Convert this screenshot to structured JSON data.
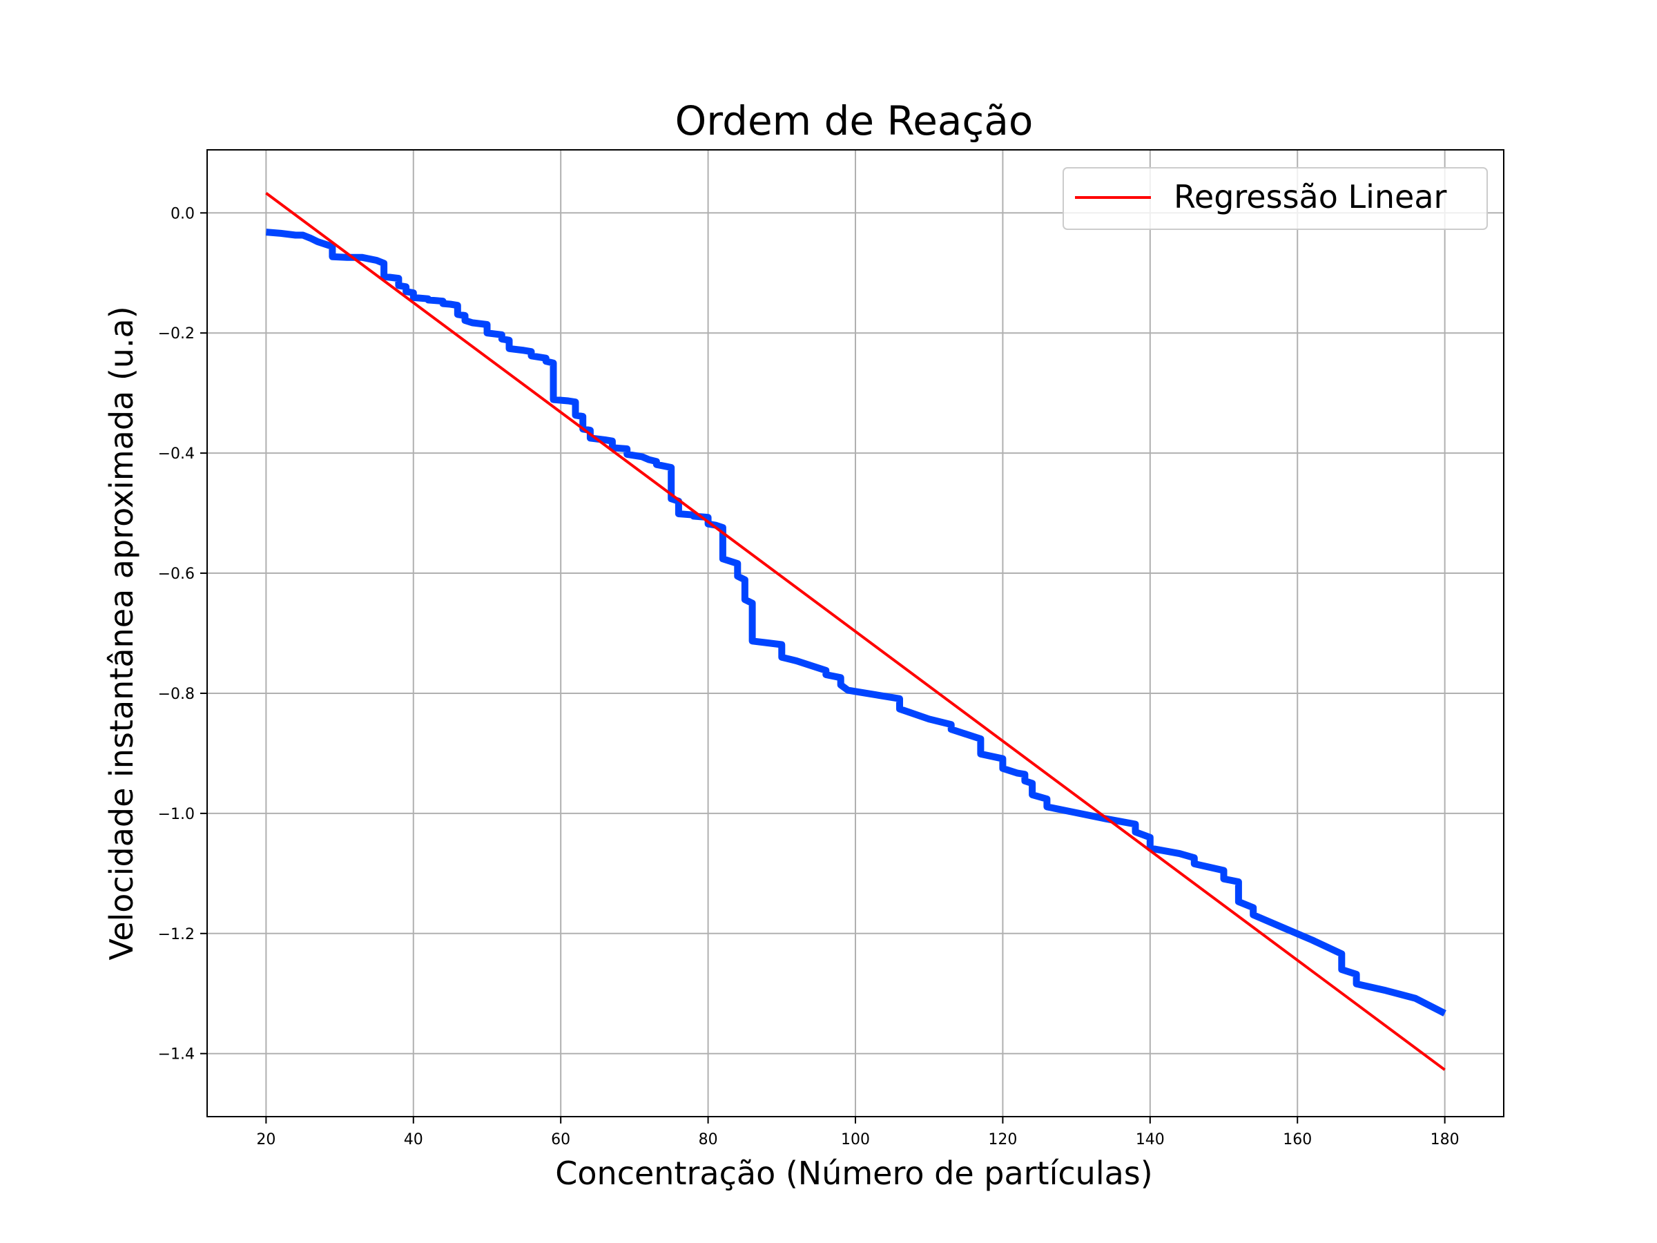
{
  "chart_data": {
    "type": "line",
    "title": "Ordem de Reação",
    "xlabel": "Concentração (Número de partículas)",
    "ylabel": "Velocidade instantânea aproximada (u.a)",
    "xlim": [
      12,
      188
    ],
    "ylim": [
      -1.505,
      0.105
    ],
    "x_ticks": [
      20,
      40,
      60,
      80,
      100,
      120,
      140,
      160,
      180
    ],
    "y_ticks": [
      0.0,
      -0.2,
      -0.4,
      -0.6,
      -0.8,
      -1.0,
      -1.2,
      -1.4
    ],
    "x_tick_labels": [
      "20",
      "40",
      "60",
      "80",
      "100",
      "120",
      "140",
      "160",
      "180"
    ],
    "y_tick_labels": [
      "0.0",
      "−0.2",
      "−0.4",
      "−0.6",
      "−0.8",
      "−1.0",
      "−1.2",
      "−1.4"
    ],
    "grid": true,
    "legend_position": "top-right",
    "series": [
      {
        "name": "",
        "color": "#0044ff",
        "points": [
          [
            20,
            -0.032
          ],
          [
            22,
            -0.034
          ],
          [
            24,
            -0.037
          ],
          [
            25,
            -0.037
          ],
          [
            26,
            -0.042
          ],
          [
            27,
            -0.048
          ],
          [
            28,
            -0.052
          ],
          [
            29,
            -0.056
          ],
          [
            29,
            -0.073
          ],
          [
            31,
            -0.074
          ],
          [
            33,
            -0.074
          ],
          [
            35,
            -0.079
          ],
          [
            36,
            -0.084
          ],
          [
            36,
            -0.106
          ],
          [
            38,
            -0.109
          ],
          [
            38,
            -0.121
          ],
          [
            39,
            -0.123
          ],
          [
            39,
            -0.131
          ],
          [
            40,
            -0.133
          ],
          [
            40,
            -0.141
          ],
          [
            42,
            -0.143
          ],
          [
            42,
            -0.145
          ],
          [
            44,
            -0.147
          ],
          [
            44,
            -0.151
          ],
          [
            45,
            -0.152
          ],
          [
            46,
            -0.154
          ],
          [
            46,
            -0.169
          ],
          [
            47,
            -0.171
          ],
          [
            47,
            -0.179
          ],
          [
            48,
            -0.183
          ],
          [
            50,
            -0.186
          ],
          [
            50,
            -0.2
          ],
          [
            52,
            -0.203
          ],
          [
            52,
            -0.21
          ],
          [
            53,
            -0.212
          ],
          [
            53,
            -0.226
          ],
          [
            55,
            -0.229
          ],
          [
            56,
            -0.231
          ],
          [
            56,
            -0.238
          ],
          [
            58,
            -0.242
          ],
          [
            58,
            -0.247
          ],
          [
            59,
            -0.25
          ],
          [
            59,
            -0.311
          ],
          [
            61,
            -0.313
          ],
          [
            62,
            -0.315
          ],
          [
            62,
            -0.337
          ],
          [
            63,
            -0.339
          ],
          [
            63,
            -0.36
          ],
          [
            64,
            -0.362
          ],
          [
            64,
            -0.375
          ],
          [
            66,
            -0.378
          ],
          [
            67,
            -0.38
          ],
          [
            67,
            -0.391
          ],
          [
            69,
            -0.393
          ],
          [
            69,
            -0.402
          ],
          [
            71,
            -0.406
          ],
          [
            72,
            -0.411
          ],
          [
            73,
            -0.414
          ],
          [
            73,
            -0.419
          ],
          [
            75,
            -0.424
          ],
          [
            75,
            -0.476
          ],
          [
            76,
            -0.48
          ],
          [
            76,
            -0.501
          ],
          [
            78,
            -0.503
          ],
          [
            78,
            -0.505
          ],
          [
            80,
            -0.507
          ],
          [
            80,
            -0.518
          ],
          [
            81,
            -0.52
          ],
          [
            82,
            -0.524
          ],
          [
            82,
            -0.576
          ],
          [
            84,
            -0.584
          ],
          [
            84,
            -0.605
          ],
          [
            85,
            -0.611
          ],
          [
            85,
            -0.644
          ],
          [
            86,
            -0.65
          ],
          [
            86,
            -0.713
          ],
          [
            88,
            -0.716
          ],
          [
            90,
            -0.719
          ],
          [
            90,
            -0.74
          ],
          [
            92,
            -0.746
          ],
          [
            96,
            -0.762
          ],
          [
            96,
            -0.769
          ],
          [
            98,
            -0.774
          ],
          [
            98,
            -0.786
          ],
          [
            99,
            -0.795
          ],
          [
            102,
            -0.801
          ],
          [
            106,
            -0.809
          ],
          [
            106,
            -0.826
          ],
          [
            110,
            -0.843
          ],
          [
            113,
            -0.852
          ],
          [
            113,
            -0.86
          ],
          [
            117,
            -0.876
          ],
          [
            117,
            -0.901
          ],
          [
            120,
            -0.909
          ],
          [
            120,
            -0.925
          ],
          [
            122,
            -0.933
          ],
          [
            123,
            -0.935
          ],
          [
            123,
            -0.946
          ],
          [
            124,
            -0.95
          ],
          [
            124,
            -0.969
          ],
          [
            126,
            -0.976
          ],
          [
            126,
            -0.989
          ],
          [
            130,
            -0.999
          ],
          [
            134,
            -1.009
          ],
          [
            138,
            -1.018
          ],
          [
            138,
            -1.031
          ],
          [
            140,
            -1.04
          ],
          [
            140,
            -1.058
          ],
          [
            144,
            -1.067
          ],
          [
            146,
            -1.074
          ],
          [
            146,
            -1.084
          ],
          [
            150,
            -1.095
          ],
          [
            150,
            -1.109
          ],
          [
            152,
            -1.114
          ],
          [
            152,
            -1.147
          ],
          [
            154,
            -1.157
          ],
          [
            154,
            -1.169
          ],
          [
            158,
            -1.19
          ],
          [
            162,
            -1.211
          ],
          [
            166,
            -1.234
          ],
          [
            166,
            -1.26
          ],
          [
            168,
            -1.268
          ],
          [
            168,
            -1.284
          ],
          [
            172,
            -1.295
          ],
          [
            176,
            -1.308
          ],
          [
            180,
            -1.333
          ]
        ]
      },
      {
        "name": "Regressão Linear",
        "color": "#ff0000",
        "points": [
          [
            20,
            0.033
          ],
          [
            180,
            -1.427
          ]
        ]
      }
    ]
  }
}
